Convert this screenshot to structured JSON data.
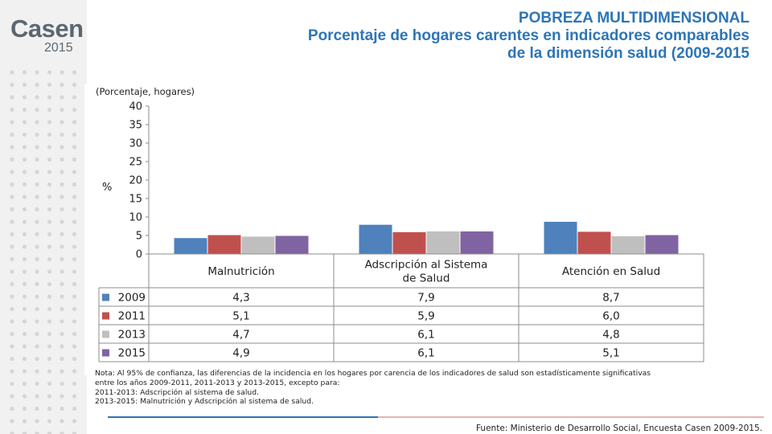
{
  "logo": {
    "word": "Casen",
    "year": "2015"
  },
  "title": {
    "line1": "POBREZA MULTIDIMENSIONAL",
    "line2": "Porcentaje de hogares carentes en indicadores comparables",
    "line3": "de la dimensión salud (2009-2015"
  },
  "unit_label": "(Porcentaje, hogares)",
  "notes": [
    "Nota: Al 95% de confianza, las diferencias de la incidencia en los hogares por carencia de los indicadores de salud son estadísticamente significativas",
    "entre los años 2009-2011, 2011-2013 y 2013-2015, excepto para:",
    "2011-2013: Adscripción al sistema de salud.",
    "2013-2015: Malnutrición y Adscripción al sistema de salud."
  ],
  "source": "Fuente: Ministerio de Desarrollo Social, Encuesta Casen 2009-2015.",
  "colors": {
    "title": "#2e75b6",
    "sidebar": "#f1f1f1",
    "dots": "#d6d6d6"
  },
  "chart_data": {
    "type": "bar",
    "categories": [
      [
        "Malnutrición"
      ],
      [
        "Adscripción al Sistema",
        "de Salud"
      ],
      [
        "Atención en Salud"
      ]
    ],
    "series": [
      {
        "name": "2009",
        "color": "#4f81bd",
        "values": [
          4.3,
          7.9,
          8.7
        ],
        "labels": [
          "4,3",
          "7,9",
          "8,7"
        ]
      },
      {
        "name": "2011",
        "color": "#c0504d",
        "values": [
          5.1,
          5.9,
          6.0
        ],
        "labels": [
          "5,1",
          "5,9",
          "6,0"
        ]
      },
      {
        "name": "2013",
        "color": "#bfbfbf",
        "values": [
          4.7,
          6.1,
          4.8
        ],
        "labels": [
          "4,7",
          "6,1",
          "4,8"
        ]
      },
      {
        "name": "2015",
        "color": "#8064a2",
        "values": [
          4.9,
          6.1,
          5.1
        ],
        "labels": [
          "4,9",
          "6,1",
          "5,1"
        ]
      }
    ],
    "ylabel": "%",
    "ylim": [
      0,
      40
    ],
    "yticks": [
      "0",
      "5",
      "10",
      "15",
      "20",
      "25",
      "30",
      "35",
      "40"
    ],
    "grid": false,
    "legend": "data-table"
  }
}
